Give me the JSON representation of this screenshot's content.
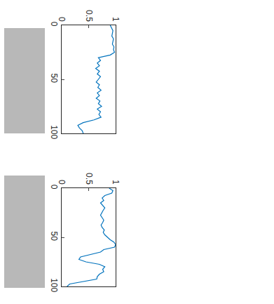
{
  "chart_data": [
    {
      "type": "line",
      "color": "#0072bd",
      "x": [
        0,
        2.5,
        5,
        7.5,
        10,
        12.5,
        15,
        17.5,
        20,
        22.5,
        25,
        27.5,
        30,
        32.5,
        35,
        37.5,
        40,
        42.5,
        45,
        47.5,
        50,
        52.5,
        55,
        57.5,
        60,
        62.5,
        65,
        67.5,
        70,
        72.5,
        75,
        77.5,
        80,
        82.5,
        85,
        87.5,
        90,
        92.5,
        95,
        97.5,
        100
      ],
      "values": [
        0.9,
        0.93,
        0.95,
        0.94,
        0.93,
        0.96,
        0.95,
        0.94,
        0.97,
        0.96,
        0.98,
        0.9,
        0.68,
        0.72,
        0.66,
        0.7,
        0.63,
        0.7,
        0.66,
        0.72,
        0.68,
        0.64,
        0.7,
        0.67,
        0.73,
        0.66,
        0.7,
        0.64,
        0.71,
        0.68,
        0.74,
        0.66,
        0.72,
        0.69,
        0.73,
        0.6,
        0.4,
        0.3,
        0.33,
        0.38,
        0.4
      ],
      "xlim": [
        0,
        100
      ],
      "xticks": [
        0,
        50,
        100
      ],
      "ylim": [
        0,
        1
      ],
      "yticks": [
        0,
        0.5,
        1
      ]
    },
    {
      "type": "line",
      "color": "#0072bd",
      "x": [
        0,
        2.5,
        5,
        7.5,
        10,
        12.5,
        15,
        17.5,
        20,
        22.5,
        25,
        27.5,
        30,
        32.5,
        35,
        37.5,
        40,
        42.5,
        45,
        47.5,
        50,
        52.5,
        55,
        57.5,
        60,
        62.5,
        65,
        67.5,
        70,
        72.5,
        75,
        77.5,
        80,
        82.5,
        85,
        87.5,
        90,
        92.5,
        95,
        97.5,
        100
      ],
      "values": [
        0.88,
        0.95,
        0.93,
        0.8,
        0.75,
        0.78,
        0.72,
        0.76,
        0.8,
        0.77,
        0.74,
        0.72,
        0.75,
        0.78,
        0.76,
        0.73,
        0.75,
        0.79,
        0.77,
        0.8,
        0.85,
        0.9,
        0.97,
        1.0,
        0.98,
        0.78,
        0.72,
        0.55,
        0.35,
        0.32,
        0.45,
        0.7,
        0.8,
        0.76,
        0.78,
        0.7,
        0.66,
        0.65,
        0.4,
        0.15,
        0.1
      ],
      "xlim": [
        0,
        100
      ],
      "xticks": [
        0,
        50,
        100
      ],
      "ylim": [
        0,
        1
      ],
      "yticks": [
        0,
        0.5,
        1
      ]
    }
  ]
}
